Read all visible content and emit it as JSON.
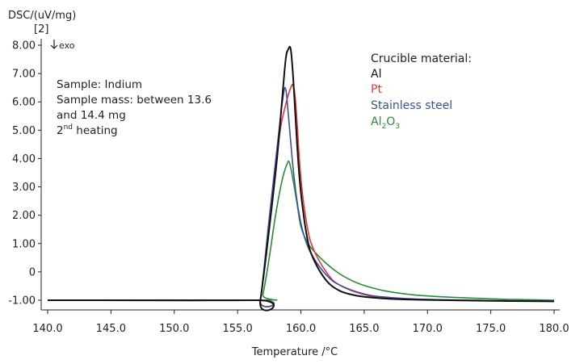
{
  "chart_data": {
    "type": "line",
    "ylabel": "DSC/(uV/mg)",
    "ylabel_index": "[2]",
    "exo_label": "exo",
    "xlabel": "Temperature /°C",
    "xlim": [
      139.5,
      180.5
    ],
    "ylim": [
      -1.1,
      8.2
    ],
    "x_ticks": [
      140.0,
      145.0,
      150.0,
      155.0,
      160.0,
      165.0,
      170.0,
      175.0,
      180.0
    ],
    "x_tick_labels": [
      "140.0",
      "145.0",
      "150.0",
      "155.0",
      "160.0",
      "165.0",
      "170.0",
      "175.0",
      "180.0"
    ],
    "y_ticks": [
      -1,
      0,
      1,
      2,
      3,
      4,
      5,
      6,
      7,
      8
    ],
    "y_tick_labels": [
      "-1.00",
      "0",
      "1.00",
      "2.00",
      "3.00",
      "4.00",
      "5.00",
      "6.00",
      "7.00",
      "8.00"
    ],
    "annotation": {
      "line1": "Sample: Indium",
      "line2": "Sample mass: between 13.6",
      "line3": "and 14.4 mg",
      "line4_num": "2",
      "line4_sup": "nd",
      "line4_rest": " heating"
    },
    "legend": {
      "title": "Crucible material:",
      "position": "top-right"
    },
    "series": [
      {
        "name": "Al",
        "color": "#111111",
        "points": [
          [
            140,
            -1.0
          ],
          [
            156.5,
            -1.0
          ],
          [
            156.8,
            -1.0
          ],
          [
            158.0,
            3.5
          ],
          [
            158.5,
            6.0
          ],
          [
            158.8,
            7.5
          ],
          [
            159.0,
            7.85
          ],
          [
            159.2,
            7.85
          ],
          [
            159.4,
            6.8
          ],
          [
            159.7,
            4.5
          ],
          [
            160.0,
            2.8
          ],
          [
            160.5,
            1.2
          ],
          [
            161.0,
            0.45
          ],
          [
            162.0,
            -0.3
          ],
          [
            163.0,
            -0.65
          ],
          [
            164.0,
            -0.8
          ],
          [
            165.0,
            -0.88
          ],
          [
            167.0,
            -0.95
          ],
          [
            170.0,
            -0.99
          ],
          [
            175.0,
            -1.02
          ],
          [
            180.0,
            -1.04
          ]
        ]
      },
      {
        "name": "Pt",
        "labelColor": "#e0383b",
        "color": "#e0383b",
        "points": [
          [
            140,
            -1.0
          ],
          [
            156.5,
            -1.0
          ],
          [
            156.8,
            -1.0
          ],
          [
            157.5,
            1.8
          ],
          [
            158.3,
            4.8
          ],
          [
            158.8,
            5.9
          ],
          [
            159.2,
            6.5
          ],
          [
            159.4,
            6.55
          ],
          [
            159.6,
            5.9
          ],
          [
            160.0,
            3.3
          ],
          [
            160.5,
            1.6
          ],
          [
            161.0,
            0.8
          ],
          [
            162.0,
            0.0
          ],
          [
            163.0,
            -0.45
          ],
          [
            165.0,
            -0.8
          ],
          [
            167.0,
            -0.92
          ],
          [
            170.0,
            -0.98
          ],
          [
            175.0,
            -1.01
          ],
          [
            180.0,
            -1.03
          ]
        ]
      },
      {
        "name": "Stainless steel",
        "color": "#3d4f9c",
        "points": [
          [
            140,
            -1.0
          ],
          [
            156.5,
            -1.0
          ],
          [
            156.8,
            -1.0
          ],
          [
            157.5,
            1.9
          ],
          [
            158.2,
            4.7
          ],
          [
            158.6,
            6.2
          ],
          [
            158.8,
            6.45
          ],
          [
            159.0,
            5.6
          ],
          [
            159.4,
            3.6
          ],
          [
            159.8,
            2.2
          ],
          [
            160.3,
            1.2
          ],
          [
            161.0,
            0.5
          ],
          [
            162.0,
            -0.1
          ],
          [
            163.0,
            -0.45
          ],
          [
            165.0,
            -0.78
          ],
          [
            167.0,
            -0.9
          ],
          [
            170.0,
            -0.97
          ],
          [
            175.0,
            -1.01
          ],
          [
            180.0,
            -1.03
          ]
        ]
      },
      {
        "name": "Al2O3",
        "label_main": "Al",
        "label_sub1": "2",
        "label_mid": "O",
        "label_sub2": "3",
        "color": "#2a8a3a",
        "points": [
          [
            140,
            -1.0
          ],
          [
            156.7,
            -1.0
          ],
          [
            157.0,
            -0.8
          ],
          [
            157.5,
            0.5
          ],
          [
            158.0,
            2.0
          ],
          [
            158.5,
            3.2
          ],
          [
            158.9,
            3.8
          ],
          [
            159.1,
            3.85
          ],
          [
            159.4,
            3.2
          ],
          [
            159.7,
            2.4
          ],
          [
            160.0,
            1.6
          ],
          [
            160.5,
            1.05
          ],
          [
            161.0,
            0.75
          ],
          [
            162.0,
            0.3
          ],
          [
            163.0,
            -0.05
          ],
          [
            164.0,
            -0.3
          ],
          [
            165.0,
            -0.48
          ],
          [
            167.0,
            -0.7
          ],
          [
            170.0,
            -0.85
          ],
          [
            175.0,
            -0.95
          ],
          [
            180.0,
            -1.0
          ]
        ]
      }
    ]
  }
}
